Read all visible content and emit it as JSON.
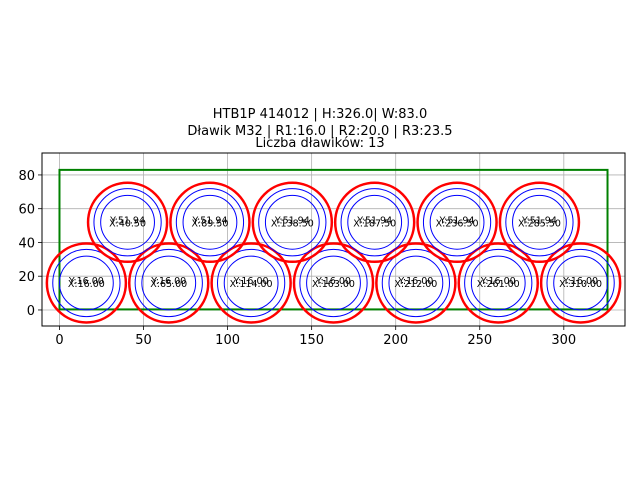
{
  "title": {
    "line1": "HTB1P 414012 | H:326.0| W:83.0",
    "line2": "Dławik M32 | R1:16.0 | R2:20.0 | R3:23.5",
    "line3": "Liczba dławików: 13"
  },
  "chart_data": {
    "type": "scatter",
    "title": "HTB1P 414012 | H:326.0| W:83.0 / Dławik M32 | R1:16.0 | R2:20.0 | R3:23.5 / Liczba dławików: 13",
    "xlabel": "",
    "ylabel": "",
    "xlim": [
      -10.4,
      336.4
    ],
    "ylim": [
      -9.5,
      93.0
    ],
    "x_ticks": [
      0,
      50,
      100,
      150,
      200,
      250,
      300
    ],
    "y_ticks": [
      0,
      20,
      40,
      60,
      80
    ],
    "grid": true,
    "equal_aspect": true,
    "rectangle": {
      "x": 0,
      "y": 0,
      "width": 326.0,
      "height": 83.0,
      "color": "#008000"
    },
    "radii": {
      "R1": 16.0,
      "R2": 20.0,
      "R3": 23.5
    },
    "colors": {
      "R1": "#0000ff",
      "R2": "#0000ff",
      "R3": "#ff0000"
    },
    "circles": [
      {
        "x": 16.0,
        "y": 16.0,
        "label_x": "X:16.00",
        "label_y": "Y:16.00"
      },
      {
        "x": 65.0,
        "y": 16.0,
        "label_x": "X:65.00",
        "label_y": "Y:16.00"
      },
      {
        "x": 114.0,
        "y": 16.0,
        "label_x": "X:114.00",
        "label_y": "Y:16.00"
      },
      {
        "x": 163.0,
        "y": 16.0,
        "label_x": "X:163.00",
        "label_y": "Y:16.00"
      },
      {
        "x": 212.0,
        "y": 16.0,
        "label_x": "X:212.00",
        "label_y": "Y:16.00"
      },
      {
        "x": 261.0,
        "y": 16.0,
        "label_x": "X:261.00",
        "label_y": "Y:16.00"
      },
      {
        "x": 310.0,
        "y": 16.0,
        "label_x": "X:310.00",
        "label_y": "Y:16.00"
      },
      {
        "x": 40.5,
        "y": 51.94,
        "label_x": "X:40.50",
        "label_y": "Y:51.94"
      },
      {
        "x": 89.5,
        "y": 51.94,
        "label_x": "X:89.50",
        "label_y": "Y:51.94"
      },
      {
        "x": 138.5,
        "y": 51.94,
        "label_x": "X:138.50",
        "label_y": "Y:51.94"
      },
      {
        "x": 187.5,
        "y": 51.94,
        "label_x": "X:187.50",
        "label_y": "Y:51.94"
      },
      {
        "x": 236.5,
        "y": 51.94,
        "label_x": "X:236.50",
        "label_y": "Y:51.94"
      },
      {
        "x": 285.5,
        "y": 51.94,
        "label_x": "X:285.50",
        "label_y": "Y:51.94"
      }
    ],
    "count": 13
  }
}
